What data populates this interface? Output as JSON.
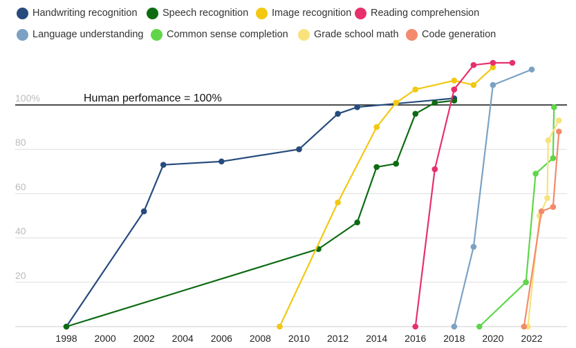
{
  "chart_data": {
    "type": "line",
    "title": "",
    "xlabel": "",
    "ylabel": "",
    "xlim": [
      1996,
      2024
    ],
    "ylim": [
      0,
      120
    ],
    "x_ticks": [
      "1998",
      "2000",
      "2002",
      "2004",
      "2006",
      "2008",
      "2010",
      "2012",
      "2014",
      "2016",
      "2018",
      "2020",
      "2022"
    ],
    "y_ticks": [
      "20",
      "40",
      "60",
      "80",
      "100%"
    ],
    "grid": "horizontal",
    "legend_position": "top",
    "annotation": "Human perfomance = 100%",
    "reference_line": 100,
    "series": [
      {
        "name": "Handwriting recognition",
        "color": "#264b7d",
        "x": [
          1998,
          2002,
          2003,
          2006,
          2010,
          2012,
          2013,
          2018
        ],
        "y": [
          0,
          52,
          73,
          74.5,
          80,
          96,
          99,
          103
        ]
      },
      {
        "name": "Speech recognition",
        "color": "#0d6b12",
        "x": [
          1998,
          2011,
          2013,
          2014,
          2015,
          2016,
          2017,
          2018
        ],
        "y": [
          0,
          35,
          47,
          72,
          73.5,
          96,
          101,
          102
        ]
      },
      {
        "name": "Image recognition",
        "color": "#f2c811",
        "x": [
          2009,
          2012,
          2014,
          2015,
          2016,
          2018,
          2019,
          2020
        ],
        "y": [
          0,
          56,
          90,
          101,
          107,
          111,
          109,
          117
        ]
      },
      {
        "name": "Reading comprehension",
        "color": "#e7306b",
        "x": [
          2016,
          2017,
          2018,
          2018,
          2019,
          2020,
          2021
        ],
        "y": [
          0,
          71,
          107,
          107,
          118,
          119,
          119
        ]
      },
      {
        "name": "Language understanding",
        "color": "#7ba2c3",
        "x": [
          2018,
          2019,
          2020,
          2022
        ],
        "y": [
          0,
          36,
          109,
          116
        ]
      },
      {
        "name": "Common sense completion",
        "color": "#5fd64a",
        "x": [
          2019.3,
          2021.7,
          2022.2,
          2023.1,
          2023.15
        ],
        "y": [
          0,
          20,
          69,
          76,
          99
        ]
      },
      {
        "name": "Grade school math",
        "color": "#f7e27c",
        "x": [
          2021.8,
          2022.4,
          2022.8,
          2022.85,
          2023.4
        ],
        "y": [
          0,
          50,
          58,
          84,
          93
        ]
      },
      {
        "name": "Code generation",
        "color": "#f38a6b",
        "x": [
          2021.6,
          2022.5,
          2023.1,
          2023.4
        ],
        "y": [
          0,
          52,
          54,
          88
        ]
      }
    ]
  }
}
